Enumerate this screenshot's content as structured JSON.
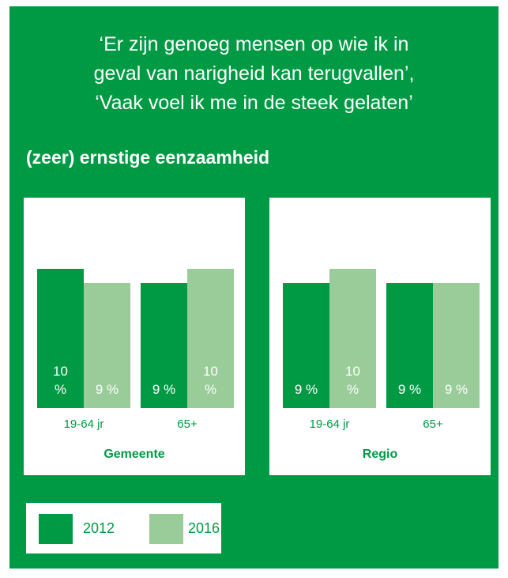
{
  "title": [
    "‘Er zijn genoeg mensen op wie ik in",
    "geval van narigheid kan terugvallen’,",
    "‘Vaak voel ik me in de steek gelaten’"
  ],
  "subtitle": "(zeer) ernstige eenzaamheid",
  "chart_data": [
    {
      "type": "bar",
      "xlabel": "Gemeente",
      "categories": [
        "19-64 jr",
        "65+"
      ],
      "ylim": [
        0,
        10
      ],
      "series": [
        {
          "name": "2012",
          "color": "#009a44",
          "values": [
            10,
            9
          ],
          "value_labels": [
            "10 %",
            "9 %"
          ]
        },
        {
          "name": "2016",
          "color": "#99cc99",
          "values": [
            9,
            10
          ],
          "value_labels": [
            "9 %",
            "10 %"
          ]
        }
      ]
    },
    {
      "type": "bar",
      "xlabel": "Regio",
      "categories": [
        "19-64 jr",
        "65+"
      ],
      "ylim": [
        0,
        10
      ],
      "series": [
        {
          "name": "2012",
          "color": "#009a44",
          "values": [
            9,
            9
          ],
          "value_labels": [
            "9 %",
            "9 %"
          ]
        },
        {
          "name": "2016",
          "color": "#99cc99",
          "values": [
            10,
            9
          ],
          "value_labels": [
            "10 %",
            "9 %"
          ]
        }
      ]
    }
  ]
}
